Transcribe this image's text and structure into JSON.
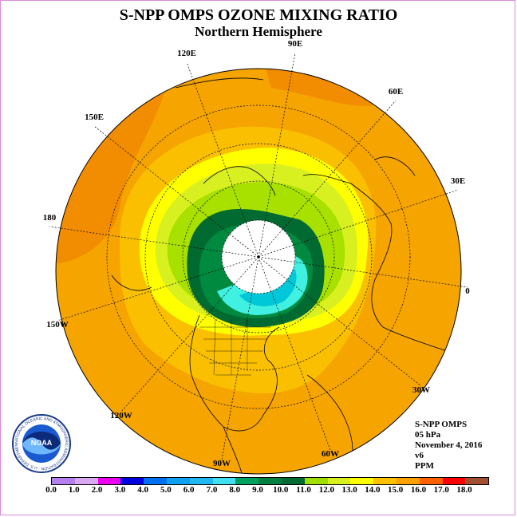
{
  "title": "S-NPP OMPS OZONE MIXING RATIO",
  "subtitle": "Northern Hemisphere",
  "longitude_labels": [
    "90E",
    "60E",
    "30E",
    "0",
    "30W",
    "60W",
    "90W",
    "120W",
    "150W",
    "180",
    "150E",
    "120E"
  ],
  "info": {
    "instrument": "S-NPP OMPS",
    "level": "05 hPa",
    "date": "November 4, 2016",
    "version": "v6",
    "units": "PPM"
  },
  "colorbar": {
    "ticks": [
      "0.0",
      "1.0",
      "2.0",
      "3.0",
      "4.0",
      "5.0",
      "6.0",
      "7.0",
      "8.0",
      "9.0",
      "10.0",
      "11.0",
      "12.0",
      "13.0",
      "14.0",
      "15.0",
      "16.0",
      "17.0",
      "18.0"
    ],
    "colors": [
      "#b67ff0",
      "#d8a8f0",
      "#f000f0",
      "#0000e0",
      "#0070f0",
      "#10a0f0",
      "#20b8f0",
      "#40e0f0",
      "#00a060",
      "#008040",
      "#006a30",
      "#a0e000",
      "#d8f020",
      "#ffff00",
      "#ffc000",
      "#ffa000",
      "#ff6000",
      "#ff0000",
      "#a05030"
    ]
  },
  "logo_text": "NOAA",
  "logo_ring_text": "NATIONAL OCEANIC AND ATMOSPHERIC ADMINISTRATION · U.S. DEPARTMENT OF COMMERCE",
  "colors": {
    "orange": "#f5a400",
    "dark_orange": "#f28c00",
    "light_orange": "#fac000",
    "yellow": "#ffff00",
    "yellow_green": "#d8f020",
    "light_green": "#a8e000",
    "dark_green": "#006a30",
    "cyan": "#40f0e0",
    "cyan_dark": "#00c0d0",
    "no_data": "#ffffff"
  }
}
